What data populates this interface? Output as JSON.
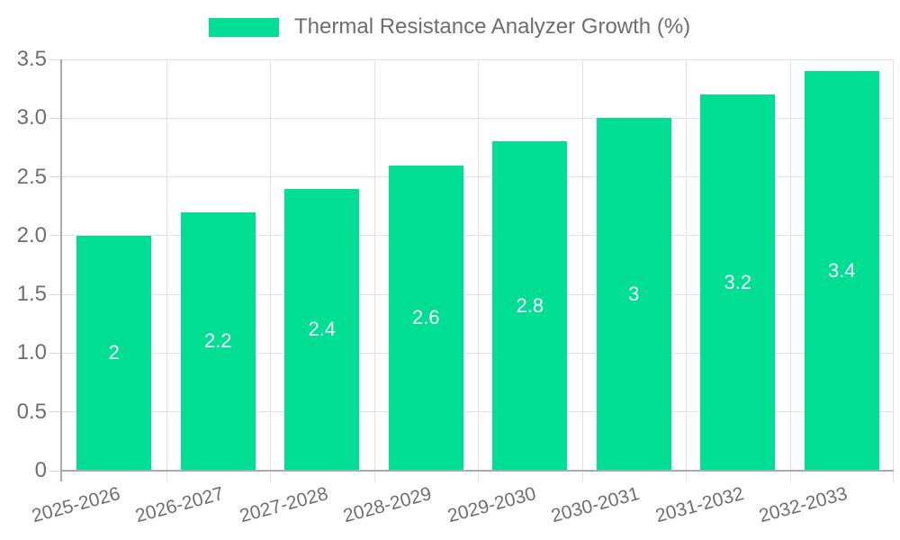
{
  "legend": {
    "label": "Thermal Resistance Analyzer Growth (%)"
  },
  "chart_data": {
    "type": "bar",
    "title": "Thermal Resistance Analyzer Growth (%)",
    "categories": [
      "2025-2026",
      "2026-2027",
      "2027-2028",
      "2028-2029",
      "2029-2030",
      "2030-2031",
      "2031-2032",
      "2032-2033"
    ],
    "values": [
      2,
      2.2,
      2.4,
      2.6,
      2.8,
      3,
      3.2,
      3.4
    ],
    "bar_value_labels": [
      "2",
      "2.2",
      "2.4",
      "2.6",
      "2.8",
      "3",
      "3.2",
      "3.4"
    ],
    "series": [
      {
        "name": "Thermal Resistance Analyzer Growth (%)",
        "values": [
          2,
          2.2,
          2.4,
          2.6,
          2.8,
          3,
          3.2,
          3.4
        ]
      }
    ],
    "xlabel": "",
    "ylabel": "",
    "ylim": [
      0,
      3.5
    ],
    "yticks": [
      0,
      0.5,
      1,
      1.5,
      2,
      2.5,
      3,
      3.5
    ],
    "ytick_labels": [
      "0",
      "0.5",
      "1.0",
      "1.5",
      "2.0",
      "2.5",
      "3.0",
      "3.5"
    ],
    "grid": true,
    "legend_position": "top",
    "colors": {
      "bar": "#00DE93",
      "bar_label": "#ffffff",
      "axis_line": "#aaaaaa",
      "gridline": "#e2e2e2",
      "tick": "#d6d6d6",
      "axis_text": "#6e6e6e"
    }
  }
}
